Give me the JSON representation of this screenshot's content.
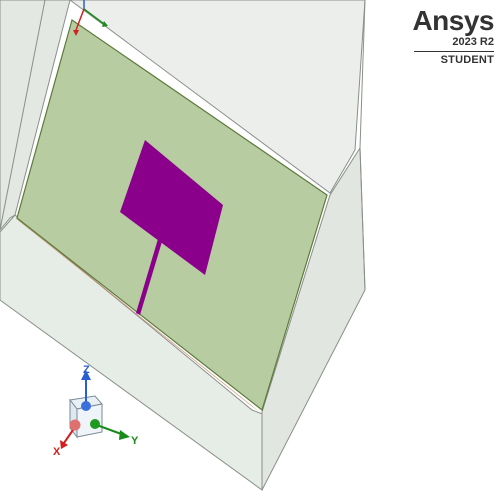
{
  "branding": {
    "product": "Ansys",
    "version": "2023 R2",
    "edition": "STUDENT"
  },
  "triad": {
    "x_label": "X",
    "y_label": "Y",
    "z_label": "Z"
  },
  "colors": {
    "air_box_fill": "#e6ede6",
    "air_box_edge": "#8a8f8a",
    "substrate_fill": "#b7cca0",
    "substrate_edge": "#5c7a3a",
    "ground_edge": "#c08060",
    "patch_fill": "#8b008b",
    "x_axis": "#d02020",
    "y_axis": "#1a8a1a",
    "z_axis": "#2a5fd0"
  }
}
